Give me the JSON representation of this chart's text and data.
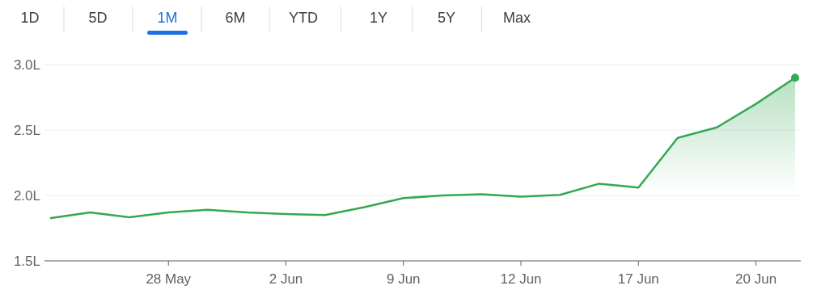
{
  "chart_data": {
    "type": "area",
    "annotations": [
      "1D",
      "5D",
      "1M",
      "6M",
      "YTD",
      "1Y",
      "5Y",
      "Max"
    ],
    "categories": [
      null,
      null,
      null,
      "28 May",
      null,
      null,
      "2 Jun",
      null,
      null,
      "9 Jun",
      null,
      null,
      "12 Jun",
      null,
      null,
      "17 Jun",
      null,
      null,
      "20 Jun",
      null
    ],
    "series": [
      {
        "color": "#34a853",
        "values": [
          1.827,
          1.87,
          1.833,
          1.87,
          1.89,
          1.87,
          1.858,
          1.85,
          1.91,
          1.98,
          2.0,
          2.01,
          1.99,
          2.005,
          2.09,
          2.06,
          2.44,
          2.52,
          2.7,
          2.9
        ]
      }
    ],
    "ylim": [
      1.5,
      3.0
    ],
    "yticks": [
      {
        "value": 1.5,
        "label": "1.5L"
      },
      {
        "value": 2.0,
        "label": "2.0L"
      },
      {
        "value": 2.5,
        "label": "2.5L"
      },
      {
        "value": 3.0,
        "label": "3.0L"
      }
    ],
    "grid": "y"
  }
}
